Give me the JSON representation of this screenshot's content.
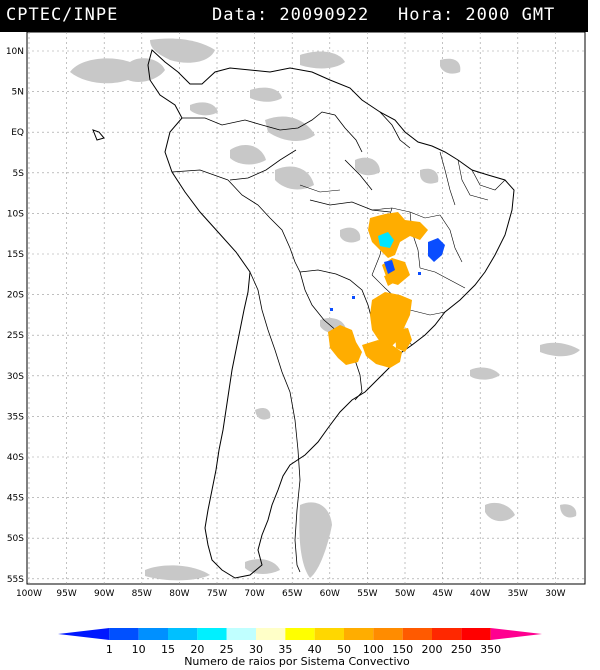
{
  "header": {
    "agency": "CPTEC/INPE",
    "date_label": "Data: 20090922",
    "time_label": "Hora: 2000 GMT"
  },
  "map": {
    "lat_labels": [
      "10N",
      "5N",
      "EQ",
      "5S",
      "10S",
      "15S",
      "20S",
      "25S",
      "30S",
      "35S",
      "40S",
      "45S",
      "50S",
      "55S"
    ],
    "lon_labels": [
      "100W",
      "95W",
      "90W",
      "85W",
      "80W",
      "75W",
      "70W",
      "65W",
      "60W",
      "55W",
      "50W",
      "45W",
      "40W",
      "35W",
      "30W"
    ],
    "cloud_color": "#c8c8c8",
    "colors": {
      "orange": "#ffad00",
      "cyan": "#00e5ff",
      "blue": "#0a4dff"
    }
  },
  "colorbar": {
    "tick_labels": [
      "1",
      "10",
      "15",
      "20",
      "25",
      "30",
      "35",
      "40",
      "50",
      "100",
      "150",
      "200",
      "250",
      "350"
    ],
    "colors": [
      "#0018ff",
      "#0050ff",
      "#0090ff",
      "#00c0ff",
      "#00f0ff",
      "#c0ffff",
      "#ffffc8",
      "#ffff00",
      "#ffd700",
      "#ffad00",
      "#ff8c00",
      "#ff5a00",
      "#ff2800",
      "#ff0000",
      "#ff0090"
    ],
    "title": "Numero de raios por Sistema Convectivo"
  }
}
